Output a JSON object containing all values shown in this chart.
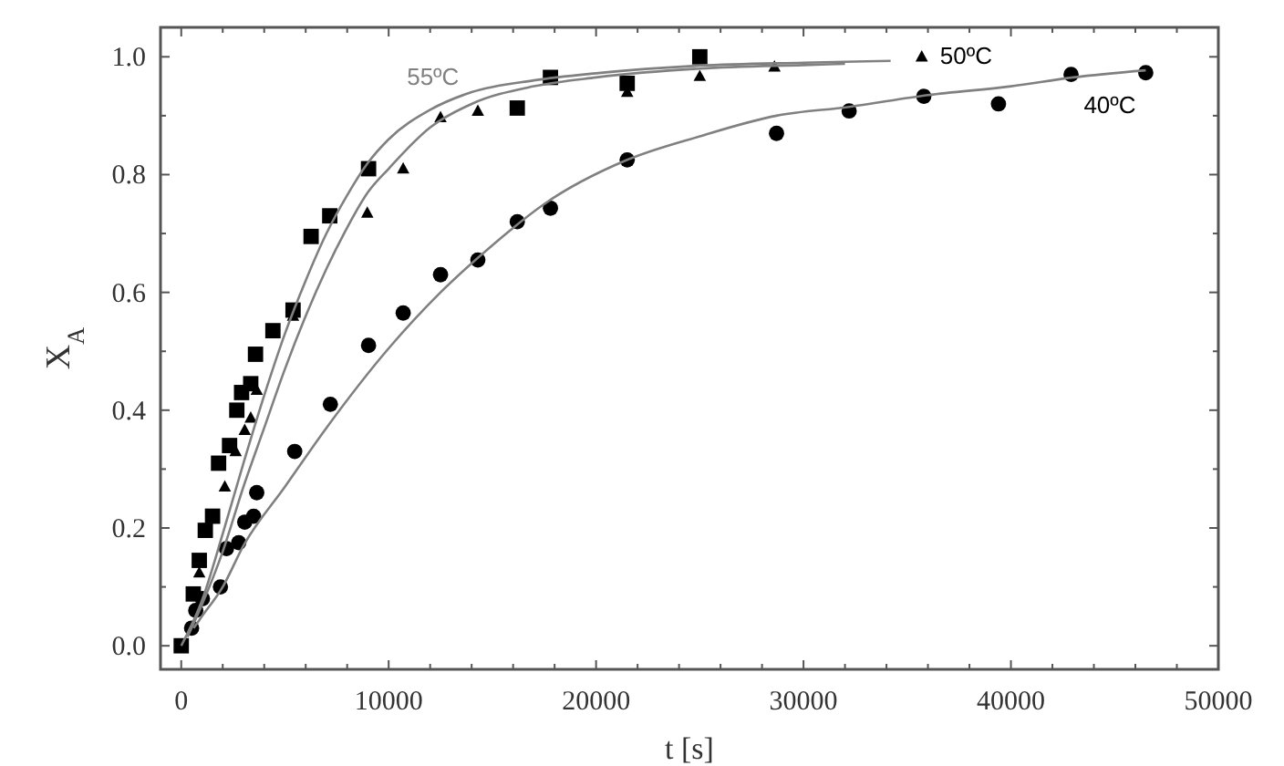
{
  "chart_data": {
    "type": "scatter",
    "xlabel": "t [s]",
    "ylabel": "X$_{A}$",
    "xlim": [
      -1000,
      50000
    ],
    "ylim": [
      -0.04,
      1.05
    ],
    "xticks": [
      0,
      {
        "value": 2000,
        "label": null
      },
      {
        "value": 4000,
        "label": null
      },
      {
        "value": 6000,
        "label": null
      },
      {
        "value": 8000,
        "label": null
      },
      10000,
      {
        "value": 12000,
        "label": null
      },
      {
        "value": 14000,
        "label": null
      },
      {
        "value": 16000,
        "label": null
      },
      {
        "value": 18000,
        "label": null
      },
      20000,
      {
        "value": 22000,
        "label": null
      },
      {
        "value": 24000,
        "label": null
      },
      {
        "value": 26000,
        "label": null
      },
      {
        "value": 28000,
        "label": null
      },
      30000,
      {
        "value": 32000,
        "label": null
      },
      {
        "value": 34000,
        "label": null
      },
      {
        "value": 36000,
        "label": null
      },
      {
        "value": 38000,
        "label": null
      },
      40000,
      {
        "value": 42000,
        "label": null
      },
      {
        "value": 44000,
        "label": null
      },
      {
        "value": 46000,
        "label": null
      },
      {
        "value": 48000,
        "label": null
      },
      50000
    ],
    "yticks": [
      {
        "value": 0,
        "label": "0.0"
      },
      {
        "value": 0.1,
        "label": null
      },
      {
        "value": 0.2,
        "label": "0.2"
      },
      {
        "value": 0.3,
        "label": null
      },
      {
        "value": 0.4,
        "label": "0.4"
      },
      {
        "value": 0.5,
        "label": null
      },
      {
        "value": 0.6,
        "label": "0.6"
      },
      {
        "value": 0.7,
        "label": null
      },
      {
        "value": 0.8,
        "label": "0.8"
      },
      {
        "value": 0.9,
        "label": null
      },
      {
        "value": 1.0,
        "label": "1.0"
      }
    ],
    "grid": false,
    "legend": false,
    "series": [
      {
        "marker": "square",
        "color": "#000000",
        "x": [
          0,
          580,
          870,
          1160,
          1510,
          1800,
          2330,
          2680,
          2910,
          3350,
          3580,
          4420,
          5390,
          6260,
          7160,
          9030,
          16200,
          17800,
          21500,
          25000
        ],
        "values": [
          0,
          0.088,
          0.145,
          0.196,
          0.22,
          0.31,
          0.34,
          0.4,
          0.43,
          0.445,
          0.495,
          0.535,
          0.57,
          0.695,
          0.73,
          0.81,
          0.913,
          0.965,
          0.955,
          1.0
        ]
      },
      {
        "name": "50ºC",
        "marker": "triangle",
        "color": "#000000",
        "x": [
          870,
          2100,
          2620,
          3060,
          3350,
          3640,
          5390,
          8970,
          10700,
          12500,
          14300,
          21500,
          25000,
          28600,
          35700
        ],
        "values": [
          0.124,
          0.27,
          0.33,
          0.366,
          0.387,
          0.434,
          0.56,
          0.735,
          0.81,
          0.897,
          0.908,
          0.94,
          0.967,
          0.983,
          1.0
        ]
      },
      {
        "name": "40ºC",
        "marker": "circle",
        "color": "#000000",
        "x": [
          500,
          700,
          1020,
          1890,
          2180,
          2770,
          3060,
          3490,
          3640,
          5470,
          7190,
          9030,
          10700,
          12500,
          14300,
          16200,
          17800,
          21500,
          28700,
          32200,
          35800,
          39400,
          42900,
          46500
        ],
        "values": [
          0.03,
          0.06,
          0.08,
          0.1,
          0.165,
          0.175,
          0.21,
          0.22,
          0.26,
          0.33,
          0.41,
          0.51,
          0.565,
          0.63,
          0.655,
          0.72,
          0.743,
          0.825,
          0.87,
          0.908,
          0.933,
          0.92,
          0.97,
          0.973
        ]
      },
      {
        "name": "55ºC",
        "type": "line",
        "marker": "none",
        "line_style": "solid",
        "color": "#808080",
        "x": [
          0,
          1000,
          2000,
          3000,
          4000,
          5000,
          6000,
          7000,
          8000,
          9000,
          10000,
          12000,
          14000,
          17000,
          20000,
          25000,
          30000,
          34200
        ],
        "values": [
          0,
          0.077,
          0.19,
          0.31,
          0.425,
          0.53,
          0.62,
          0.7,
          0.765,
          0.82,
          0.86,
          0.91,
          0.94,
          0.96,
          0.972,
          0.985,
          0.99,
          0.993
        ]
      },
      {
        "type": "line",
        "marker": "none",
        "line_style": "solid",
        "color": "#808080",
        "x": [
          300,
          1000,
          2000,
          3000,
          4000,
          5000,
          6000,
          7000,
          8000,
          9000,
          10000,
          12000,
          14000,
          17000,
          20000,
          25000,
          30000,
          32000
        ],
        "values": [
          0.015,
          0.07,
          0.16,
          0.27,
          0.37,
          0.47,
          0.56,
          0.64,
          0.71,
          0.77,
          0.81,
          0.88,
          0.92,
          0.95,
          0.965,
          0.98,
          0.986,
          0.988
        ]
      },
      {
        "type": "line",
        "marker": "none",
        "line_style": "solid",
        "color": "#808080",
        "x": [
          600,
          1000,
          2000,
          3000,
          5000,
          7000,
          10000,
          12500,
          15000,
          17500,
          21500,
          25000,
          28700,
          32200,
          36000,
          40000,
          43000,
          46500
        ],
        "values": [
          0.03,
          0.05,
          0.1,
          0.17,
          0.27,
          0.37,
          0.505,
          0.6,
          0.68,
          0.75,
          0.825,
          0.865,
          0.9,
          0.915,
          0.935,
          0.95,
          0.965,
          0.977
        ]
      }
    ]
  }
}
